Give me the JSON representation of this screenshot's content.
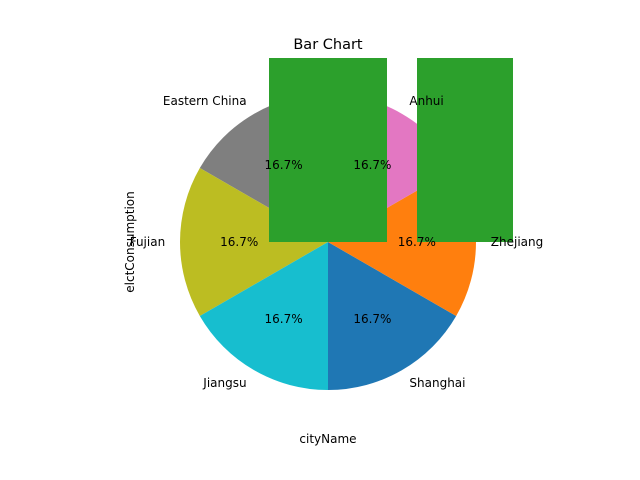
{
  "chart_data": {
    "type": "pie",
    "title": "Bar Chart",
    "xlabel": "cityName",
    "ylabel": "elctConsumption",
    "slices": [
      {
        "label": "Shanghai",
        "value": 16.7,
        "pct_label": "16.7%",
        "color": "#1f77b4"
      },
      {
        "label": "Zhejiang",
        "value": 16.7,
        "pct_label": "16.7%",
        "color": "#ff7f0e"
      },
      {
        "label": "Anhui",
        "value": 16.7,
        "pct_label": "16.7%",
        "color": "#e377c2"
      },
      {
        "label": "Eastern China",
        "value": 16.7,
        "pct_label": "16.7%",
        "color": "#7f7f7f"
      },
      {
        "label": "Fujian",
        "value": 16.7,
        "pct_label": "16.7%",
        "color": "#bcbd22"
      },
      {
        "label": "Jiangsu",
        "value": 16.7,
        "pct_label": "16.7%",
        "color": "#17becf"
      }
    ],
    "overlay_bars": {
      "color": "#2ca02c",
      "count": 2
    }
  }
}
